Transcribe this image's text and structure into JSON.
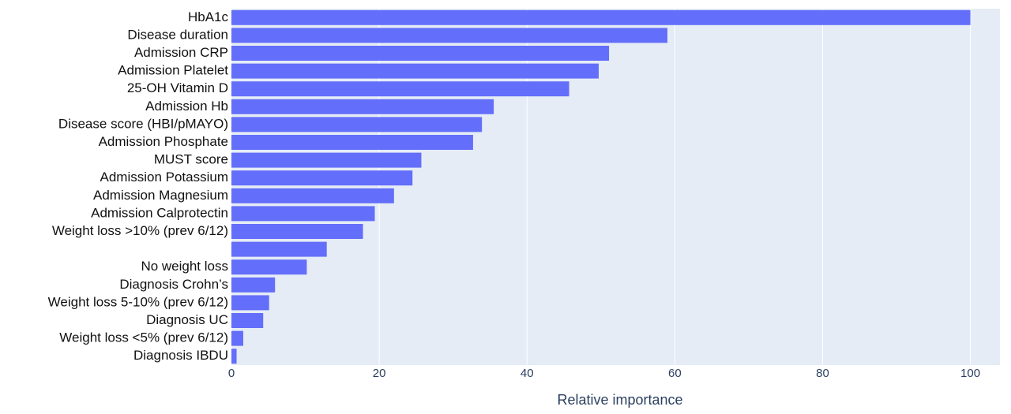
{
  "chart_data": {
    "type": "bar",
    "orientation": "horizontal",
    "x_label": "Relative importance",
    "categories": [
      "HbA1c",
      "Disease duration",
      "Admission CRP",
      "Admission Platelet",
      "25-OH Vitamin D",
      "Admission Hb",
      "Disease score (HBI/pMAYO)",
      "Admission Phosphate",
      "MUST score",
      "Admission Potassium",
      "Admission Magnesium",
      "Admission Calprotectin",
      "Weight loss >10% (prev 6/12)",
      null,
      "No weight loss",
      "Diagnosis Crohn’s",
      "Weight loss 5-10% (prev 6/12)",
      "Diagnosis UC",
      "Weight loss <5% (prev 6/12)",
      "Diagnosis IBDU"
    ],
    "values": [
      100,
      59,
      51.1,
      49.7,
      45.7,
      35.5,
      33.9,
      32.7,
      25.7,
      24.5,
      22,
      19.4,
      17.8,
      12.9,
      10.2,
      5.9,
      5.1,
      4.3,
      1.6,
      0.7
    ],
    "color": "#636efa",
    "xlim": [
      0,
      104
    ],
    "xticks": [
      0,
      20,
      40,
      60,
      80,
      100
    ],
    "grid": true
  }
}
